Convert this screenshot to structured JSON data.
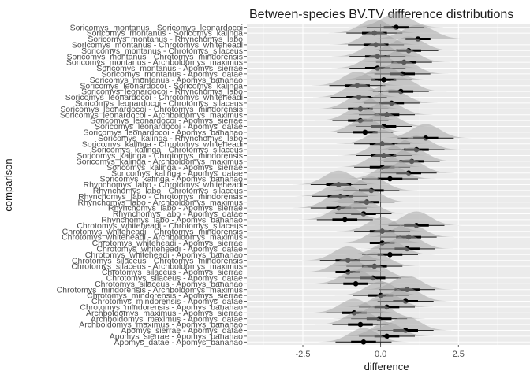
{
  "chart_data": {
    "type": "interval",
    "title": "Between-species BV.TV difference distributions",
    "xlabel": "difference",
    "ylabel": "comparison",
    "xlim": [
      -4.3,
      4.8
    ],
    "xticks": [
      -2.5,
      0,
      2.5
    ],
    "xtick_labels": [
      "-2.5",
      "0.0",
      "2.5"
    ],
    "reference_line": 0,
    "grid": true,
    "panel_background": "#ebebeb",
    "colors": {
      "point": "#000000",
      "thick_interval": "#000000",
      "thin_interval": "#262626",
      "density": "#a6a6a6"
    },
    "comparisons": [
      {
        "label": "Soricomys_montanus - Soricomys_leonardocoi",
        "median": 0.5,
        "low80": 0.1,
        "high80": 0.9,
        "low95": -0.45,
        "high95": 1.4
      },
      {
        "label": "Soricomys_montanus - Soricomys_kalinga",
        "median": -0.2,
        "low80": -0.6,
        "high80": 0.2,
        "low95": -1.1,
        "high95": 0.7
      },
      {
        "label": "Soricomys_montanus - Rhynchomys_labo",
        "median": 1.2,
        "low80": 0.8,
        "high80": 1.6,
        "low95": 0.2,
        "high95": 2.2
      },
      {
        "label": "Soricomys_montanus - Chrotomys_whiteheadi",
        "median": -0.15,
        "low80": -0.55,
        "high80": 0.25,
        "low95": -1.05,
        "high95": 0.75
      },
      {
        "label": "Soricomys_montanus - Chrotomys_silaceus",
        "median": 0.9,
        "low80": 0.5,
        "high80": 1.3,
        "low95": -0.05,
        "high95": 1.85
      },
      {
        "label": "Soricomys_montanus - Chrotomys_mindorensis",
        "median": -0.1,
        "low80": -0.5,
        "high80": 0.3,
        "low95": -1.0,
        "high95": 0.8
      },
      {
        "label": "Soricomys_montanus - Archboldomys_maximus",
        "median": 0.75,
        "low80": 0.35,
        "high80": 1.15,
        "low95": -0.15,
        "high95": 1.65
      },
      {
        "label": "Soricomys_montanus - Apomys_sierrae",
        "median": -0.1,
        "low80": -0.5,
        "high80": 0.3,
        "low95": -1.0,
        "high95": 0.8
      },
      {
        "label": "Soricomys_montanus - Apomys_datae",
        "median": 0.7,
        "low80": 0.3,
        "high80": 1.1,
        "low95": -0.2,
        "high95": 1.6
      },
      {
        "label": "Soricomys_montanus - Apomys_banahao",
        "median": 0.1,
        "low80": -0.3,
        "high80": 0.5,
        "low95": -0.8,
        "high95": 1.0
      },
      {
        "label": "Soricomys_leonardocoi - Soricomys_kalinga",
        "median": -0.75,
        "low80": -1.15,
        "high80": -0.35,
        "low95": -1.65,
        "high95": 0.15
      },
      {
        "label": "Soricomys_leonardocoi - Rhynchomys_labo",
        "median": 0.65,
        "low80": 0.25,
        "high80": 1.05,
        "low95": -0.25,
        "high95": 1.55
      },
      {
        "label": "Soricomys_leonardocoi - Chrotomys_whiteheadi",
        "median": -0.7,
        "low80": -1.1,
        "high80": -0.3,
        "low95": -1.6,
        "high95": 0.2
      },
      {
        "label": "Soricomys_leonardocoi - Chrotomys_silaceus",
        "median": 0.35,
        "low80": -0.05,
        "high80": 0.75,
        "low95": -0.55,
        "high95": 1.25
      },
      {
        "label": "Soricomys_leonardocoi - Chrotomys_mindorensis",
        "median": -0.65,
        "low80": -1.05,
        "high80": -0.25,
        "low95": -1.55,
        "high95": 0.25
      },
      {
        "label": "Soricomys_leonardocoi - Archboldomys_maximus",
        "median": 0.2,
        "low80": -0.2,
        "high80": 0.6,
        "low95": -0.7,
        "high95": 1.1
      },
      {
        "label": "Soricomys_leonardocoi - Apomys_sierrae",
        "median": -0.65,
        "low80": -1.05,
        "high80": -0.25,
        "low95": -1.55,
        "high95": 0.25
      },
      {
        "label": "Soricomys_leonardocoi - Apomys_datae",
        "median": 0.1,
        "low80": -0.3,
        "high80": 0.5,
        "low95": -0.8,
        "high95": 1.0
      },
      {
        "label": "Soricomys_leonardocoi - Apomys_banahao",
        "median": -0.5,
        "low80": -0.9,
        "high80": -0.1,
        "low95": -1.4,
        "high95": 0.4
      },
      {
        "label": "Soricomys_kalinga - Rhynchomys_labo",
        "median": 1.45,
        "low80": 1.05,
        "high80": 1.85,
        "low95": 0.55,
        "high95": 2.35
      },
      {
        "label": "Soricomys_kalinga - Chrotomys_whiteheadi",
        "median": 0.05,
        "low80": -0.35,
        "high80": 0.45,
        "low95": -0.85,
        "high95": 0.95
      },
      {
        "label": "Soricomys_kalinga - Chrotomys_silaceus",
        "median": 1.15,
        "low80": 0.75,
        "high80": 1.55,
        "low95": 0.25,
        "high95": 2.05
      },
      {
        "label": "Soricomys_kalinga - Chrotomys_mindorensis",
        "median": 0.1,
        "low80": -0.3,
        "high80": 0.5,
        "low95": -0.8,
        "high95": 1.0
      },
      {
        "label": "Soricomys_kalinga - Archboldomys_maximus",
        "median": 1.0,
        "low80": 0.6,
        "high80": 1.4,
        "low95": 0.1,
        "high95": 1.9
      },
      {
        "label": "Soricomys_kalinga - Apomys_sierrae",
        "median": 0.05,
        "low80": -0.35,
        "high80": 0.45,
        "low95": -0.85,
        "high95": 0.95
      },
      {
        "label": "Soricomys_kalinga - Apomys_datae",
        "median": 0.9,
        "low80": 0.5,
        "high80": 1.3,
        "low95": 0.0,
        "high95": 1.8
      },
      {
        "label": "Soricomys_kalinga - Apomys_banahao",
        "median": 0.3,
        "low80": -0.1,
        "high80": 0.7,
        "low95": -0.6,
        "high95": 1.2
      },
      {
        "label": "Rhynchomys_labo - Chrotomys_whiteheadi",
        "median": -1.35,
        "low80": -1.75,
        "high80": -0.95,
        "low95": -2.25,
        "high95": -0.45
      },
      {
        "label": "Rhynchomys_labo - Chrotomys_silaceus",
        "median": -0.3,
        "low80": -0.7,
        "high80": 0.1,
        "low95": -1.2,
        "high95": 0.6
      },
      {
        "label": "Rhynchomys_labo - Chrotomys_mindorensis",
        "median": -1.3,
        "low80": -1.7,
        "high80": -0.9,
        "low95": -2.2,
        "high95": -0.4
      },
      {
        "label": "Rhynchomys_labo - Archboldomys_maximus",
        "median": -0.45,
        "low80": -0.85,
        "high80": -0.05,
        "low95": -1.35,
        "high95": 0.45
      },
      {
        "label": "Rhynchomys_labo - Apomys_sierrae",
        "median": -1.35,
        "low80": -1.75,
        "high80": -0.95,
        "low95": -2.25,
        "high95": -0.45
      },
      {
        "label": "Rhynchomys_labo - Apomys_datae",
        "median": -0.55,
        "low80": -0.95,
        "high80": -0.15,
        "low95": -1.45,
        "high95": 0.35
      },
      {
        "label": "Rhynchomys_labo - Apomys_banahao",
        "median": -1.15,
        "low80": -1.55,
        "high80": -0.75,
        "low95": -2.05,
        "high95": -0.25
      },
      {
        "label": "Chrotomys_whiteheadi - Chrotomys_silaceus",
        "median": 1.15,
        "low80": 0.75,
        "high80": 1.55,
        "low95": 0.25,
        "high95": 2.05
      },
      {
        "label": "Chrotomys_whiteheadi - Chrotomys_mindorensis",
        "median": 0.05,
        "low80": -0.35,
        "high80": 0.45,
        "low95": -0.85,
        "high95": 0.95
      },
      {
        "label": "Chrotomys_whiteheadi - Archboldomys_maximus",
        "median": 0.9,
        "low80": 0.5,
        "high80": 1.3,
        "low95": 0.0,
        "high95": 1.8
      },
      {
        "label": "Chrotomys_whiteheadi - Apomys_sierrae",
        "median": 0.05,
        "low80": -0.35,
        "high80": 0.45,
        "low95": -0.85,
        "high95": 0.95
      },
      {
        "label": "Chrotomys_whiteheadi - Apomys_datae",
        "median": 0.85,
        "low80": 0.45,
        "high80": 1.25,
        "low95": -0.05,
        "high95": 1.75
      },
      {
        "label": "Chrotomys_whiteheadi - Apomys_banahao",
        "median": 0.3,
        "low80": -0.1,
        "high80": 0.7,
        "low95": -0.6,
        "high95": 1.2
      },
      {
        "label": "Chrotomys_silaceus - Chrotomys_mindorensis",
        "median": -1.05,
        "low80": -1.45,
        "high80": -0.65,
        "low95": -1.95,
        "high95": -0.15
      },
      {
        "label": "Chrotomys_silaceus - Archboldomys_maximus",
        "median": -0.2,
        "low80": -0.6,
        "high80": 0.2,
        "low95": -1.1,
        "high95": 0.7
      },
      {
        "label": "Chrotomys_silaceus - Apomys_sierrae",
        "median": -1.05,
        "low80": -1.45,
        "high80": -0.65,
        "low95": -1.95,
        "high95": -0.15
      },
      {
        "label": "Chrotomys_silaceus - Apomys_datae",
        "median": -0.25,
        "low80": -0.65,
        "high80": 0.15,
        "low95": -1.15,
        "high95": 0.65
      },
      {
        "label": "Chrotomys_silaceus - Apomys_banahao",
        "median": -0.8,
        "low80": -1.2,
        "high80": -0.4,
        "low95": -1.7,
        "high95": 0.1
      },
      {
        "label": "Chrotomys_mindorensis - Archboldomys_maximus",
        "median": 0.85,
        "low80": 0.45,
        "high80": 1.25,
        "low95": -0.05,
        "high95": 1.75
      },
      {
        "label": "Chrotomys_mindorensis - Apomys_sierrae",
        "median": 0.0,
        "low80": -0.4,
        "high80": 0.4,
        "low95": -0.9,
        "high95": 0.9
      },
      {
        "label": "Chrotomys_mindorensis - Apomys_datae",
        "median": 0.8,
        "low80": 0.4,
        "high80": 1.2,
        "low95": -0.1,
        "high95": 1.7
      },
      {
        "label": "Chrotomys_mindorensis - Apomys_banahao",
        "median": 0.2,
        "low80": -0.2,
        "high80": 0.6,
        "low95": -0.7,
        "high95": 1.1
      },
      {
        "label": "Archboldomys_maximus - Apomys_sierrae",
        "median": -0.85,
        "low80": -1.25,
        "high80": -0.45,
        "low95": -1.75,
        "high95": 0.05
      },
      {
        "label": "Archboldomys_maximus - Apomys_datae",
        "median": -0.05,
        "low80": -0.45,
        "high80": 0.35,
        "low95": -0.95,
        "high95": 0.85
      },
      {
        "label": "Archboldomys_maximus - Apomys_banahao",
        "median": -0.65,
        "low80": -1.05,
        "high80": -0.25,
        "low95": -1.55,
        "high95": 0.25
      },
      {
        "label": "Apomys_sierrae - Apomys_datae",
        "median": 0.8,
        "low80": 0.4,
        "high80": 1.2,
        "low95": -0.1,
        "high95": 1.7
      },
      {
        "label": "Apomys_sierrae - Apomys_banahao",
        "median": 0.2,
        "low80": -0.2,
        "high80": 0.6,
        "low95": -0.7,
        "high95": 1.1
      },
      {
        "label": "Apomys_datae - Apomys_banahao",
        "median": -0.55,
        "low80": -0.95,
        "high80": -0.15,
        "low95": -1.45,
        "high95": 0.35
      }
    ]
  }
}
